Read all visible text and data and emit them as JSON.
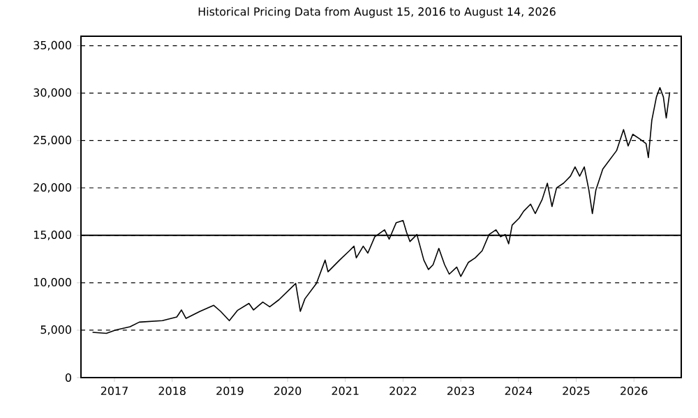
{
  "chart_data": {
    "type": "line",
    "title": "Historical Pricing Data from August 15, 2016 to August 14, 2026",
    "x": [
      2016.62,
      2016.86,
      2017.02,
      2017.27,
      2017.43,
      2017.83,
      2018.08,
      2018.16,
      2018.24,
      2018.48,
      2018.72,
      2018.84,
      2018.99,
      2019.13,
      2019.33,
      2019.41,
      2019.57,
      2019.69,
      2019.85,
      2020.14,
      2020.22,
      2020.3,
      2020.5,
      2020.65,
      2020.7,
      2020.9,
      2021.07,
      2021.15,
      2021.19,
      2021.31,
      2021.39,
      2021.51,
      2021.68,
      2021.76,
      2021.88,
      2022.0,
      2022.06,
      2022.12,
      2022.24,
      2022.36,
      2022.44,
      2022.52,
      2022.62,
      2022.72,
      2022.8,
      2022.93,
      2023.0,
      2023.13,
      2023.25,
      2023.37,
      2023.49,
      2023.61,
      2023.69,
      2023.77,
      2023.83,
      2023.89,
      2024.01,
      2024.09,
      2024.21,
      2024.29,
      2024.41,
      2024.5,
      2024.58,
      2024.66,
      2024.78,
      2024.9,
      2024.98,
      2025.06,
      2025.14,
      2025.22,
      2025.28,
      2025.34,
      2025.46,
      2025.58,
      2025.7,
      2025.82,
      2025.9,
      2025.98,
      2026.1,
      2026.21,
      2026.25,
      2026.31,
      2026.39,
      2026.45,
      2026.51,
      2026.56,
      2026.62
    ],
    "values": [
      4770,
      4670,
      5010,
      5360,
      5850,
      6000,
      6390,
      7130,
      6240,
      6980,
      7620,
      6980,
      6000,
      7080,
      7820,
      7130,
      7960,
      7470,
      8210,
      9930,
      6980,
      8310,
      9930,
      12390,
      11160,
      12390,
      13370,
      13860,
      12630,
      13860,
      13130,
      14850,
      15580,
      14600,
      16320,
      16570,
      15340,
      14350,
      15090,
      12390,
      11400,
      11900,
      13620,
      11900,
      10910,
      11650,
      10670,
      12140,
      12630,
      13370,
      15090,
      15580,
      14850,
      15090,
      14110,
      16080,
      16810,
      17550,
      18290,
      17300,
      18780,
      20500,
      18040,
      20010,
      20500,
      21240,
      22220,
      21240,
      22220,
      19760,
      17300,
      19760,
      21980,
      22960,
      23940,
      26150,
      24430,
      25660,
      25170,
      24680,
      23200,
      27140,
      29600,
      30580,
      29600,
      27380,
      30090
    ],
    "color": "#000000",
    "xlim": [
      2016.42,
      2026.82
    ],
    "xticks": [
      2017,
      2018,
      2019,
      2020,
      2021,
      2022,
      2023,
      2024,
      2025,
      2026
    ],
    "ylim": [
      0,
      36000
    ],
    "yticks": [
      0,
      {
        "value": 5000,
        "label": "5,000"
      },
      {
        "value": 10000,
        "label": "10,000"
      },
      {
        "value": 15000,
        "label": "15,000"
      },
      {
        "value": 20000,
        "label": "20,000"
      },
      {
        "value": 25000,
        "label": "25,000"
      },
      {
        "value": 30000,
        "label": "30,000"
      },
      {
        "value": 35000,
        "label": "35,000"
      }
    ],
    "grid": "y",
    "ref_lines": [
      {
        "axis": "y",
        "value": 15000,
        "color": "#000000",
        "line_style": "solid"
      }
    ],
    "marker": "none",
    "line_style": "solid"
  }
}
